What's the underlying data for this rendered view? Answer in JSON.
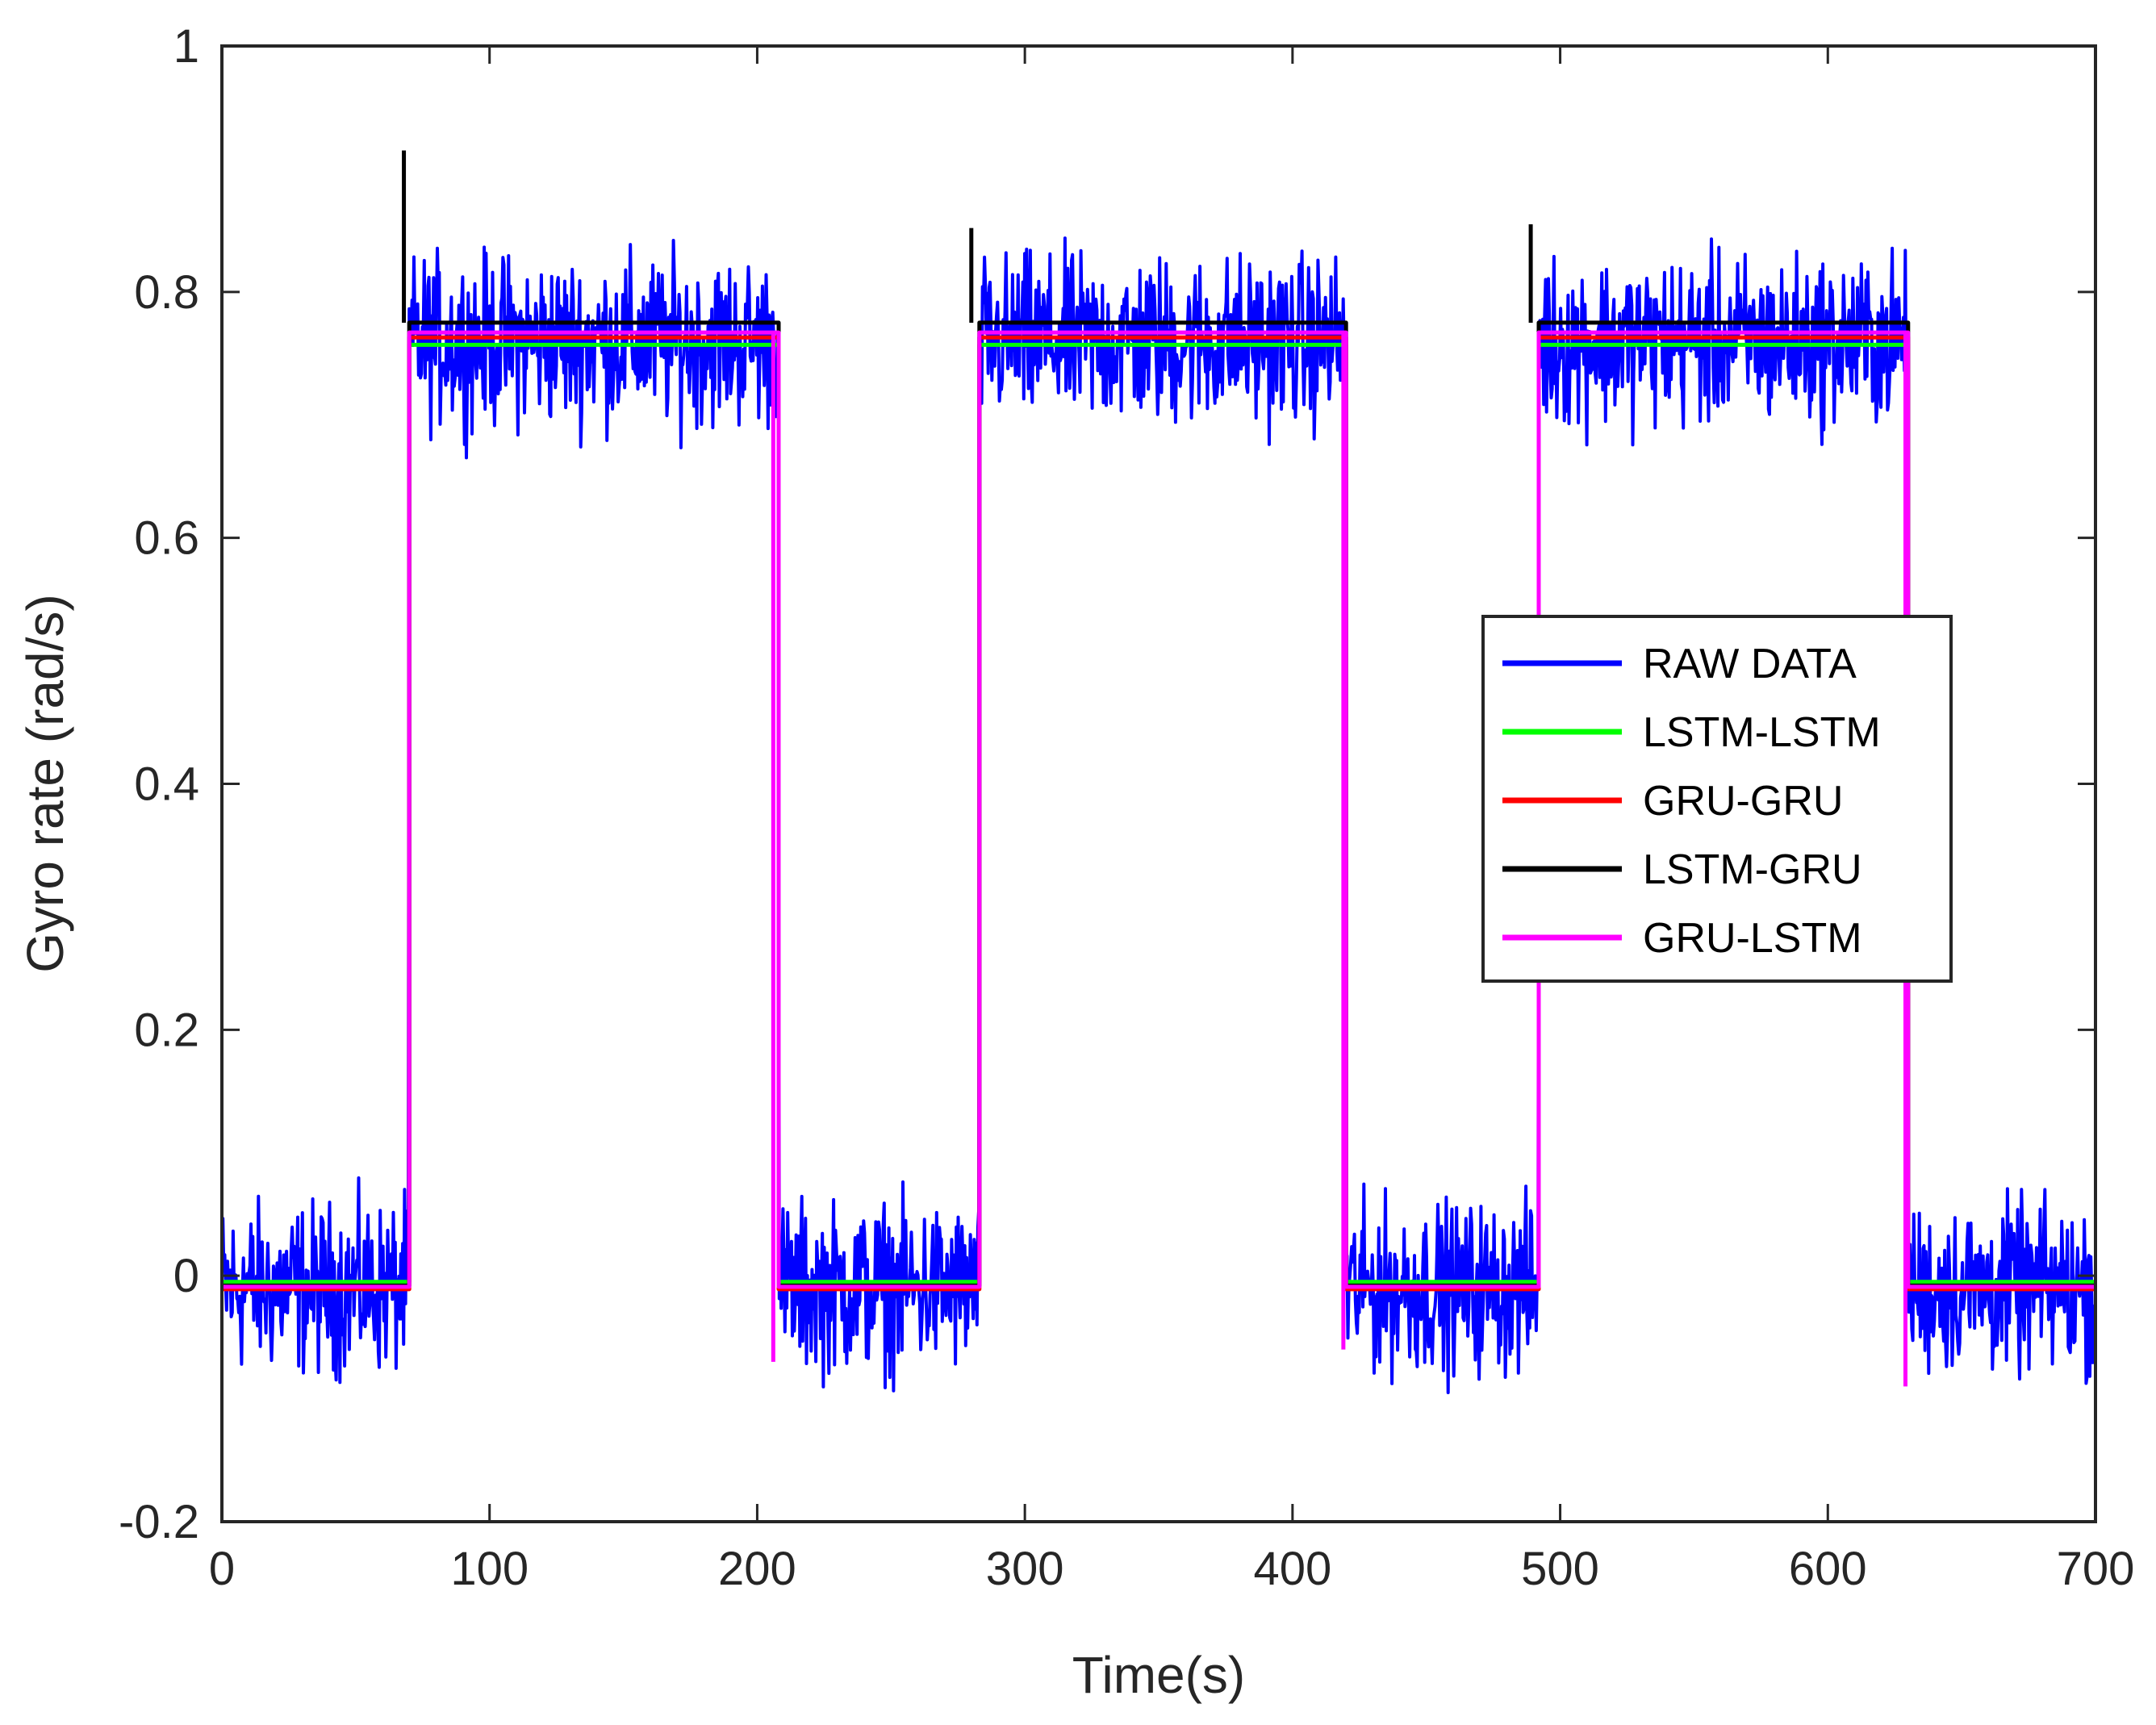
{
  "chart_data": {
    "type": "line",
    "title": "",
    "xlabel": "Time(s)",
    "ylabel": "Gyro rate (rad/s)",
    "xlim": [
      0,
      700
    ],
    "ylim": [
      -0.2,
      1
    ],
    "xticks": [
      0,
      100,
      200,
      300,
      400,
      500,
      600,
      700
    ],
    "xtick_labels": [
      "0",
      "100",
      "200",
      "300",
      "400",
      "500",
      "600",
      "700"
    ],
    "yticks": [
      -0.2,
      0,
      0.2,
      0.4,
      0.6,
      0.8,
      1
    ],
    "ytick_labels": [
      "-0.2",
      "0",
      "0.2",
      "0.4",
      "0.6",
      "0.8",
      "1"
    ],
    "grid": false,
    "legend_position": "right-center",
    "signal": {
      "segments": [
        {
          "start": 0,
          "end": 70,
          "level": -0.01
        },
        {
          "start": 70,
          "end": 208,
          "level": 0.76
        },
        {
          "start": 208,
          "end": 283,
          "level": -0.01
        },
        {
          "start": 283,
          "end": 420,
          "level": 0.76
        },
        {
          "start": 420,
          "end": 492,
          "level": -0.01
        },
        {
          "start": 492,
          "end": 630,
          "level": 0.76
        },
        {
          "start": 630,
          "end": 700,
          "level": -0.01
        }
      ],
      "raw_noise_amplitude_low": 0.1,
      "raw_noise_amplitude_high": 0.1
    },
    "series": [
      {
        "name": "RAW DATA",
        "color": "#0000ff",
        "low_level": -0.01,
        "high_level": 0.76,
        "noisy": true
      },
      {
        "name": "LSTM-LSTM",
        "color": "#00ff00",
        "low_level": -0.005,
        "high_level": 0.757,
        "noisy": false
      },
      {
        "name": "GRU-GRU",
        "color": "#ff0000",
        "low_level": -0.011,
        "high_level": 0.763,
        "noisy": false
      },
      {
        "name": "LSTM-GRU",
        "color": "#000000",
        "low_level": -0.008,
        "high_level": 0.775,
        "noisy": false,
        "spikes": [
          {
            "x": 68,
            "y": 0.915
          },
          {
            "x": 280,
            "y": 0.852
          },
          {
            "x": 489,
            "y": 0.855
          }
        ]
      },
      {
        "name": "GRU-LSTM",
        "color": "#ff00ff",
        "low_level": -0.009,
        "high_level": 0.767,
        "noisy": false,
        "dips": [
          {
            "x": 206,
            "y": -0.07
          },
          {
            "x": 419,
            "y": -0.06
          },
          {
            "x": 629,
            "y": -0.09
          }
        ]
      }
    ]
  }
}
